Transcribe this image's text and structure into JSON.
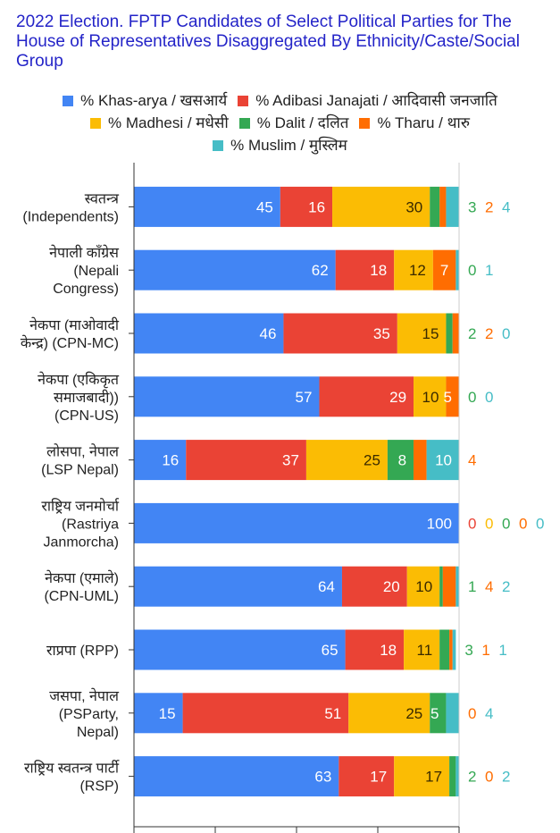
{
  "chart_data": {
    "type": "bar",
    "orientation": "horizontal",
    "stacked": true,
    "title": "2022 Election. FPTP Candidates of Select Political Parties for The House of Representatives Disaggregated By Ethnicity/Caste/Social Group",
    "xlim": [
      0,
      100
    ],
    "legend_position": "top",
    "grid": false,
    "categories": [
      [
        "स्वतन्त्र",
        "(Independents)"
      ],
      [
        "नेपाली काँग्रेस",
        "(Nepali",
        "Congress)"
      ],
      [
        "नेकपा (माओवादी",
        "केन्द्र) (CPN-MC)"
      ],
      [
        "नेकपा (एकिकृत",
        "समाजबादी))",
        "(CPN-US)"
      ],
      [
        "लोसपा, नेपाल",
        "(LSP Nepal)"
      ],
      [
        "राष्ट्रिय जनमोर्चा",
        "(Rastriya",
        "Janmorcha)"
      ],
      [
        "नेकपा (एमाले)",
        "(CPN-UML)"
      ],
      [
        "राप्रपा (RPP)"
      ],
      [
        "जसपा, नेपाल",
        "(PSParty,",
        "Nepal)"
      ],
      [
        "राष्ट्रिय स्वतन्त्र पार्टी",
        "(RSP)"
      ]
    ],
    "series": [
      {
        "name": "% Khas-arya / खसआर्य",
        "color": "#4285f4",
        "values": [
          45,
          62,
          46,
          57,
          16,
          100,
          64,
          65,
          15,
          63
        ]
      },
      {
        "name": "% Adibasi Janajati / आदिवासी जनजाति",
        "color": "#ea4335",
        "values": [
          16,
          18,
          35,
          29,
          37,
          0,
          20,
          18,
          51,
          17
        ]
      },
      {
        "name": "% Madhesi / मधेसी",
        "color": "#fbbc04",
        "values": [
          30,
          12,
          15,
          10,
          25,
          0,
          10,
          11,
          25,
          17
        ]
      },
      {
        "name": "% Dalit / दलित",
        "color": "#34a853",
        "values": [
          3,
          0,
          2,
          0,
          8,
          0,
          1,
          3,
          5,
          2
        ]
      },
      {
        "name": "% Tharu / थारु",
        "color": "#ff6d01",
        "values": [
          2,
          7,
          2,
          5,
          4,
          0,
          4,
          1,
          0,
          0
        ]
      },
      {
        "name": "% Muslim / मुस्लिम",
        "color": "#46bdc6",
        "values": [
          4,
          1,
          0,
          0,
          10,
          0,
          2,
          1,
          4,
          2
        ]
      }
    ]
  }
}
